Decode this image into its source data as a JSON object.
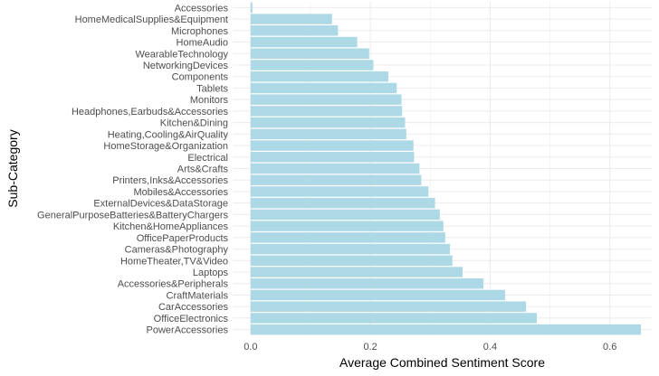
{
  "chart_data": {
    "type": "bar",
    "orientation": "horizontal",
    "xlabel": "Average Combined Sentiment Score",
    "ylabel": "Sub-Category",
    "xlim": [
      -0.03,
      0.67
    ],
    "xticks": [
      0.0,
      0.2,
      0.4,
      0.6
    ],
    "xtick_labels": [
      "0.0",
      "0.2",
      "0.4",
      "0.6"
    ],
    "grid": true,
    "bar_color": "#add8e6",
    "grid_color": "#ebebeb",
    "categories": [
      "Accessories",
      "HomeMedicalSupplies&Equipment",
      "Microphones",
      "HomeAudio",
      "WearableTechnology",
      "NetworkingDevices",
      "Components",
      "Tablets",
      "Monitors",
      "Headphones,Earbuds&Accessories",
      "Kitchen&Dining",
      "Heating,Cooling&AirQuality",
      "HomeStorage&Organization",
      "Electrical",
      "Arts&Crafts",
      "Printers,Inks&Accessories",
      "Mobiles&Accessories",
      "ExternalDevices&DataStorage",
      "GeneralPurposeBatteries&BatteryChargers",
      "Kitchen&HomeAppliances",
      "OfficePaperProducts",
      "Cameras&Photography",
      "HomeTheater,TV&Video",
      "Laptops",
      "Accessories&Peripherals",
      "CraftMaterials",
      "CarAccessories",
      "OfficeElectronics",
      "PowerAccessories"
    ],
    "values": [
      0.003,
      0.136,
      0.146,
      0.178,
      0.198,
      0.205,
      0.23,
      0.244,
      0.252,
      0.253,
      0.258,
      0.26,
      0.272,
      0.273,
      0.282,
      0.285,
      0.297,
      0.308,
      0.316,
      0.322,
      0.325,
      0.333,
      0.337,
      0.354,
      0.389,
      0.425,
      0.46,
      0.478,
      0.652
    ]
  }
}
